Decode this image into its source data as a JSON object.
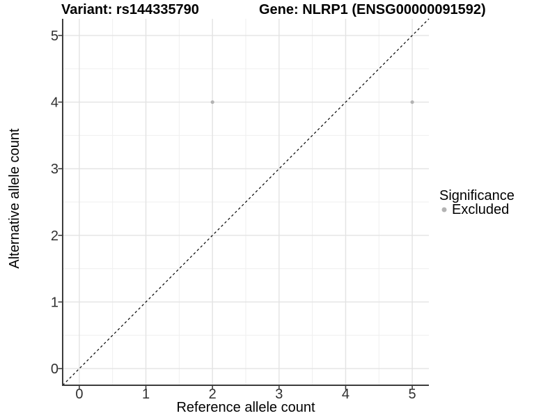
{
  "style": {
    "background": "#ffffff",
    "axis_color": "#3c3c3c",
    "tick_color": "#333333",
    "tick_label_color": "#303030",
    "grid_major_color": "#e3e3e3",
    "grid_minor_color": "#efefef",
    "point_color": "#b3b3b3",
    "reference_line_color": "#000000"
  },
  "chart_data": {
    "type": "scatter",
    "titles": [
      "Variant: rs144335790",
      "Gene: NLRP1 (ENSG00000091592)"
    ],
    "xlabel": "Reference allele count",
    "ylabel": "Alternative allele count",
    "xlim": [
      -0.25,
      5.25
    ],
    "ylim": [
      -0.25,
      5.25
    ],
    "x_ticks": [
      0,
      1,
      2,
      3,
      4,
      5
    ],
    "y_ticks": [
      0,
      1,
      2,
      3,
      4,
      5
    ],
    "x_minor_ticks": [
      0.5,
      1.5,
      2.5,
      3.5,
      4.5
    ],
    "y_minor_ticks": [
      0.5,
      1.5,
      2.5,
      3.5,
      4.5
    ],
    "grid": "major+minor",
    "legend": {
      "title": "Significance",
      "position": "right",
      "items": [
        {
          "label": "Excluded",
          "color": "#b3b3b3"
        }
      ]
    },
    "series": [
      {
        "name": "Excluded",
        "color": "#b3b3b3",
        "marker": "circle",
        "point_radius": 2.6,
        "points": [
          [
            2,
            4
          ],
          [
            5,
            4
          ]
        ]
      }
    ],
    "reference_line": {
      "kind": "identity y=x",
      "style": "dashed",
      "color": "#000000",
      "from": [
        -0.25,
        -0.25
      ],
      "to": [
        5.25,
        5.25
      ]
    }
  }
}
